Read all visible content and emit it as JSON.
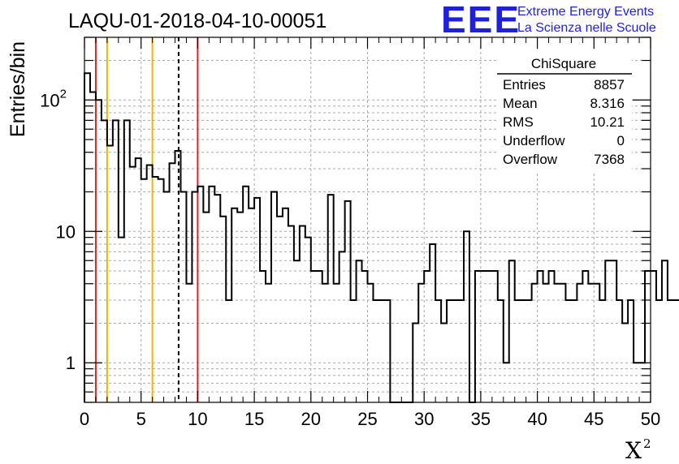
{
  "chart_data": {
    "type": "histogram",
    "title": "LAQU-01-2018-04-10-00051",
    "ylabel": "Entries/bin",
    "xlabel": "X",
    "xlabel_superscript": "2",
    "xlim": [
      0,
      50
    ],
    "ylim": [
      0.5,
      300
    ],
    "y_scale": "log",
    "grid": true,
    "bin_width": 0.5,
    "x_ticks": [
      0,
      5,
      10,
      15,
      20,
      25,
      30,
      35,
      40,
      45,
      50
    ],
    "x_tick_labels": [
      "0",
      "5",
      "10",
      "15",
      "20",
      "25",
      "30",
      "35",
      "40",
      "45",
      "50"
    ],
    "y_tick_labels": [
      {
        "value": 1,
        "base": "1",
        "exp": ""
      },
      {
        "value": 10,
        "base": "10",
        "exp": ""
      },
      {
        "value": 100,
        "base": "10",
        "exp": "2"
      }
    ],
    "values": [
      160,
      115,
      100,
      70,
      45,
      70,
      9,
      70,
      31,
      36,
      25,
      32,
      26,
      25,
      20,
      33,
      41,
      20,
      4,
      20,
      22,
      14,
      22,
      19,
      13,
      3,
      15,
      14,
      22,
      15,
      18,
      5,
      4,
      20,
      13,
      15,
      11,
      6,
      11,
      9,
      5,
      5,
      4,
      19,
      4,
      7,
      17,
      3,
      6,
      5,
      4,
      3,
      3,
      3,
      0,
      0,
      0,
      0,
      2,
      4,
      5,
      8,
      3,
      2,
      3,
      3,
      3,
      10,
      0,
      5,
      5,
      5,
      5,
      3,
      1,
      6,
      3,
      3,
      3,
      4,
      5,
      4,
      5,
      4,
      4,
      3,
      3,
      4,
      5,
      4,
      4,
      3,
      6,
      6,
      3,
      2,
      3,
      1,
      1,
      5,
      5,
      3,
      6,
      3,
      3,
      3,
      3,
      6,
      6,
      5,
      4,
      3,
      3,
      4,
      3,
      3,
      3,
      3,
      3,
      3,
      2,
      1,
      1,
      1,
      2,
      1,
      3,
      1,
      1,
      1,
      1,
      1,
      2,
      1,
      2,
      1,
      4,
      7,
      7,
      5,
      4,
      5,
      4,
      3,
      2,
      3,
      2,
      4,
      5,
      4,
      4,
      5,
      4,
      3,
      2,
      3,
      2,
      2,
      2,
      2,
      3,
      2,
      3,
      2,
      2,
      2,
      2,
      1,
      1,
      3,
      3,
      3,
      2,
      4,
      4,
      5,
      5,
      3,
      4,
      2,
      4,
      3,
      2,
      2,
      7,
      7
    ],
    "vertical_lines": [
      {
        "x": 1,
        "color": "#d42a2a",
        "style": "solid"
      },
      {
        "x": 2,
        "color": "#f0b400",
        "style": "solid"
      },
      {
        "x": 6,
        "color": "#f0b400",
        "style": "solid"
      },
      {
        "x": 8.316,
        "color": "#000000",
        "style": "dashed"
      },
      {
        "x": 10,
        "color": "#d42a2a",
        "style": "solid"
      }
    ],
    "legend_placement": "top-right",
    "stats": {
      "title": "ChiSquare",
      "rows": [
        {
          "label": "Entries",
          "value": "8857"
        },
        {
          "label": "Mean",
          "value": "8.316"
        },
        {
          "label": "RMS",
          "value": "10.21"
        },
        {
          "label": "Underflow",
          "value": "0"
        },
        {
          "label": "Overflow",
          "value": "7368"
        }
      ]
    }
  },
  "logo": {
    "letters": "EEE",
    "line1": "Extreme Energy Events",
    "line2": "La Scienza nelle Scuole",
    "color": "#1f1fe0"
  }
}
